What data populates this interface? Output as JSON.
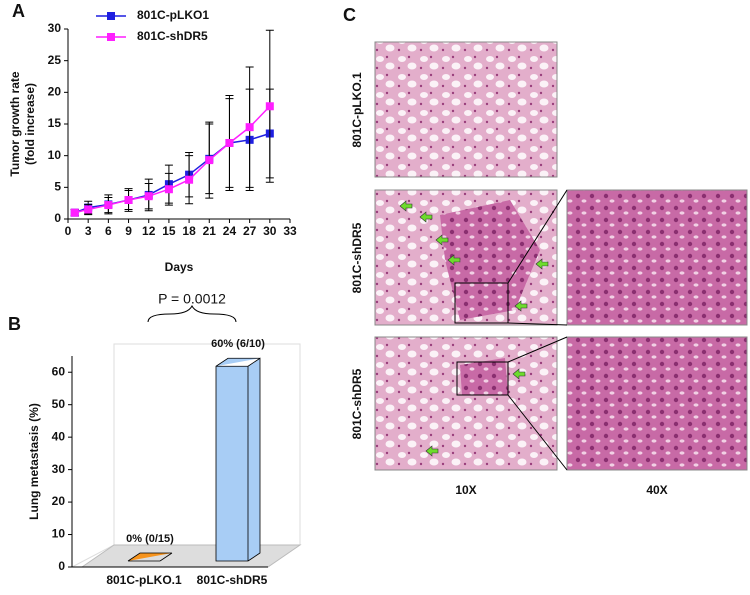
{
  "panel_labels": [
    "A",
    "B",
    "C"
  ],
  "chart_data": [
    {
      "type": "line",
      "xlabel": "Days",
      "ylabel": [
        "Tumor growth rate",
        "(fold increase)"
      ],
      "x": [
        1,
        3,
        6,
        9,
        12,
        15,
        18,
        21,
        24,
        27,
        30
      ],
      "series": [
        {
          "name": "801C-pLKO1",
          "color": "#1f1fe0",
          "values": [
            1,
            1.8,
            2.3,
            3,
            3.8,
            5.5,
            7,
            9.5,
            12,
            12.5,
            13.5
          ],
          "errors": [
            0.5,
            1,
            1.5,
            1.8,
            2.5,
            3,
            3.5,
            5.5,
            7,
            8,
            7
          ]
        },
        {
          "name": "801C-shDR5",
          "color": "#ff1fff",
          "values": [
            1,
            1.5,
            2.2,
            3,
            3.6,
            4.7,
            6.2,
            9.3,
            12,
            14.5,
            17.8
          ],
          "errors": [
            0.5,
            0.8,
            1.2,
            1.5,
            2,
            2.5,
            3.8,
            6,
            7.5,
            9.5,
            12
          ]
        }
      ],
      "xlim": [
        0,
        33
      ],
      "xticks": [
        0,
        3,
        6,
        9,
        12,
        15,
        18,
        21,
        24,
        27,
        30,
        33
      ],
      "ylim": [
        0,
        30
      ],
      "yticks": [
        0,
        5,
        10,
        15,
        20,
        25,
        30
      ]
    },
    {
      "type": "bar3d",
      "ylabel": "Lung metastasis (%)",
      "annotation": "P = 0.0012",
      "categories": [
        "801C-pLKO.1",
        "801C-shDR5"
      ],
      "values": [
        0,
        60
      ],
      "value_labels": [
        "0% (0/15)",
        "60% (6/10)"
      ],
      "colors": [
        "#f7941d",
        "#a8cdf5"
      ],
      "ylim": [
        0,
        65
      ],
      "yticks": [
        0,
        10,
        20,
        30,
        40,
        50,
        60
      ]
    }
  ],
  "histology": {
    "row_labels": [
      "801C-pLKO.1",
      "801C-shDR5",
      "801C-shDR5"
    ],
    "column_labels": [
      "10X",
      "40X"
    ]
  }
}
